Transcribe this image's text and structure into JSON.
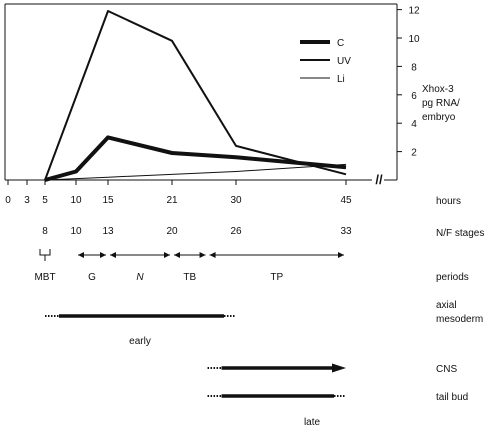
{
  "chart_data": {
    "type": "line",
    "x_ticks": [
      0,
      3,
      5,
      10,
      15,
      21,
      30,
      45
    ],
    "x_unit_label": "hours",
    "y_ticks": [
      2,
      4,
      6,
      8,
      10,
      12
    ],
    "y_label_lines": [
      "Xhox-3",
      "pg RNA/",
      "embryo"
    ],
    "ylim": [
      0,
      12
    ],
    "axis_break": "//",
    "legend_placement": "top-right",
    "series": [
      {
        "name": "C",
        "stroke": "heavy",
        "x": [
          5,
          10,
          15,
          21,
          30,
          45
        ],
        "values": [
          0,
          0.6,
          3.0,
          1.9,
          1.6,
          0.9
        ]
      },
      {
        "name": "UV",
        "stroke": "medium",
        "x": [
          5,
          15,
          21,
          30,
          45
        ],
        "values": [
          0,
          11.9,
          9.8,
          2.4,
          0.4
        ]
      },
      {
        "name": "Li",
        "stroke": "light",
        "x": [
          5,
          15,
          30,
          45
        ],
        "values": [
          0,
          0.2,
          0.6,
          1.1
        ]
      }
    ]
  },
  "stages": {
    "label": "N/F stages",
    "items": [
      {
        "text": "8",
        "hours": 5
      },
      {
        "text": "10",
        "hours": 10
      },
      {
        "text": "13",
        "hours": 15
      },
      {
        "text": "20",
        "hours": 21
      },
      {
        "text": "26",
        "hours": 30
      },
      {
        "text": "33",
        "hours": 45
      }
    ]
  },
  "periods": {
    "label": "periods",
    "items": [
      {
        "text": "MBT",
        "from": 5,
        "to": 5
      },
      {
        "text": "G",
        "from": 10,
        "to": 15
      },
      {
        "text": "N",
        "from": 15,
        "to": 21
      },
      {
        "text": "TB",
        "from": 21,
        "to": 26
      },
      {
        "text": "TP",
        "from": 26,
        "to": 45
      }
    ]
  },
  "expression": {
    "early": {
      "caption": "early",
      "domains": [
        {
          "label_lines": [
            "axial",
            "mesoderm"
          ],
          "from": 5,
          "to": 30
        }
      ]
    },
    "late": {
      "caption": "late",
      "domains": [
        {
          "label_lines": [
            "CNS"
          ],
          "from": 26,
          "to": 45
        },
        {
          "label_lines": [
            "tail bud"
          ],
          "from": 26,
          "to": 45
        }
      ]
    }
  }
}
